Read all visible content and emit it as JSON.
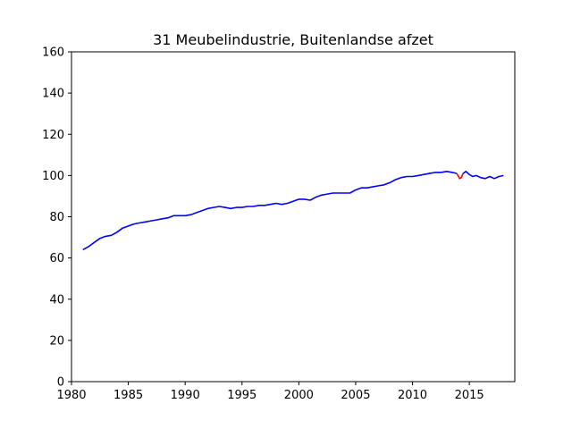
{
  "chart_data": {
    "type": "line",
    "title": "31 Meubelindustrie, Buitenlandse afzet",
    "xlabel": "",
    "ylabel": "",
    "xlim": [
      1980,
      2019
    ],
    "ylim": [
      0,
      160
    ],
    "x_ticks": [
      1980,
      1985,
      1990,
      1995,
      2000,
      2005,
      2010,
      2015
    ],
    "y_ticks": [
      0,
      20,
      40,
      60,
      80,
      100,
      120,
      140,
      160
    ],
    "grid": false,
    "legend": "none",
    "series": [
      {
        "color": "#0000ff",
        "points": [
          [
            1981.0,
            64
          ],
          [
            1981.5,
            65.5
          ],
          [
            1982.0,
            67.5
          ],
          [
            1982.5,
            69.5
          ],
          [
            1983.0,
            70.5
          ],
          [
            1983.5,
            71
          ],
          [
            1984.0,
            72.5
          ],
          [
            1984.5,
            74.5
          ],
          [
            1985.0,
            75.5
          ],
          [
            1985.5,
            76.5
          ],
          [
            1986.0,
            77
          ],
          [
            1986.5,
            77.5
          ],
          [
            1987.0,
            78
          ],
          [
            1987.5,
            78.5
          ],
          [
            1988.0,
            79
          ],
          [
            1988.5,
            79.5
          ],
          [
            1989.0,
            80.5
          ],
          [
            1989.5,
            80.5
          ],
          [
            1990.0,
            80.5
          ],
          [
            1990.5,
            81
          ],
          [
            1991.0,
            82
          ],
          [
            1991.5,
            83
          ],
          [
            1992.0,
            84
          ],
          [
            1992.5,
            84.5
          ],
          [
            1993.0,
            85
          ],
          [
            1993.5,
            84.5
          ],
          [
            1994.0,
            84
          ],
          [
            1994.5,
            84.5
          ],
          [
            1995.0,
            84.5
          ],
          [
            1995.5,
            85
          ],
          [
            1996.0,
            85
          ],
          [
            1996.5,
            85.5
          ],
          [
            1997.0,
            85.5
          ],
          [
            1997.5,
            86
          ],
          [
            1998.0,
            86.5
          ],
          [
            1998.5,
            86
          ],
          [
            1999.0,
            86.5
          ],
          [
            1999.5,
            87.5
          ],
          [
            2000.0,
            88.5
          ],
          [
            2000.5,
            88.5
          ],
          [
            2001.0,
            88
          ],
          [
            2001.5,
            89.5
          ],
          [
            2002.0,
            90.5
          ],
          [
            2002.5,
            91
          ],
          [
            2003.0,
            91.5
          ],
          [
            2003.5,
            91.5
          ],
          [
            2004.0,
            91.5
          ],
          [
            2004.5,
            91.5
          ],
          [
            2005.0,
            93
          ],
          [
            2005.5,
            94
          ],
          [
            2006.0,
            94
          ],
          [
            2006.5,
            94.5
          ],
          [
            2007.0,
            95
          ],
          [
            2007.5,
            95.5
          ],
          [
            2008.0,
            96.5
          ],
          [
            2008.5,
            98
          ],
          [
            2009.0,
            99
          ],
          [
            2009.5,
            99.5
          ],
          [
            2010.0,
            99.5
          ],
          [
            2010.5,
            100
          ],
          [
            2011.0,
            100.5
          ],
          [
            2011.5,
            101
          ],
          [
            2012.0,
            101.5
          ],
          [
            2012.5,
            101.5
          ],
          [
            2013.0,
            102
          ],
          [
            2013.5,
            101.5
          ],
          [
            2013.9,
            101
          ]
        ]
      },
      {
        "color": "#ff0000",
        "points": [
          [
            2013.9,
            101
          ],
          [
            2014.0,
            100
          ],
          [
            2014.15,
            98.5
          ],
          [
            2014.3,
            99
          ],
          [
            2014.45,
            101
          ]
        ]
      },
      {
        "color": "#0000ff",
        "points": [
          [
            2014.45,
            101
          ],
          [
            2014.7,
            102
          ],
          [
            2015.0,
            100.5
          ],
          [
            2015.3,
            99.5
          ],
          [
            2015.6,
            100
          ],
          [
            2016.0,
            99
          ],
          [
            2016.4,
            98.5
          ],
          [
            2016.8,
            99.5
          ],
          [
            2017.2,
            98.5
          ],
          [
            2017.6,
            99.5
          ],
          [
            2018.0,
            100
          ]
        ]
      }
    ]
  }
}
